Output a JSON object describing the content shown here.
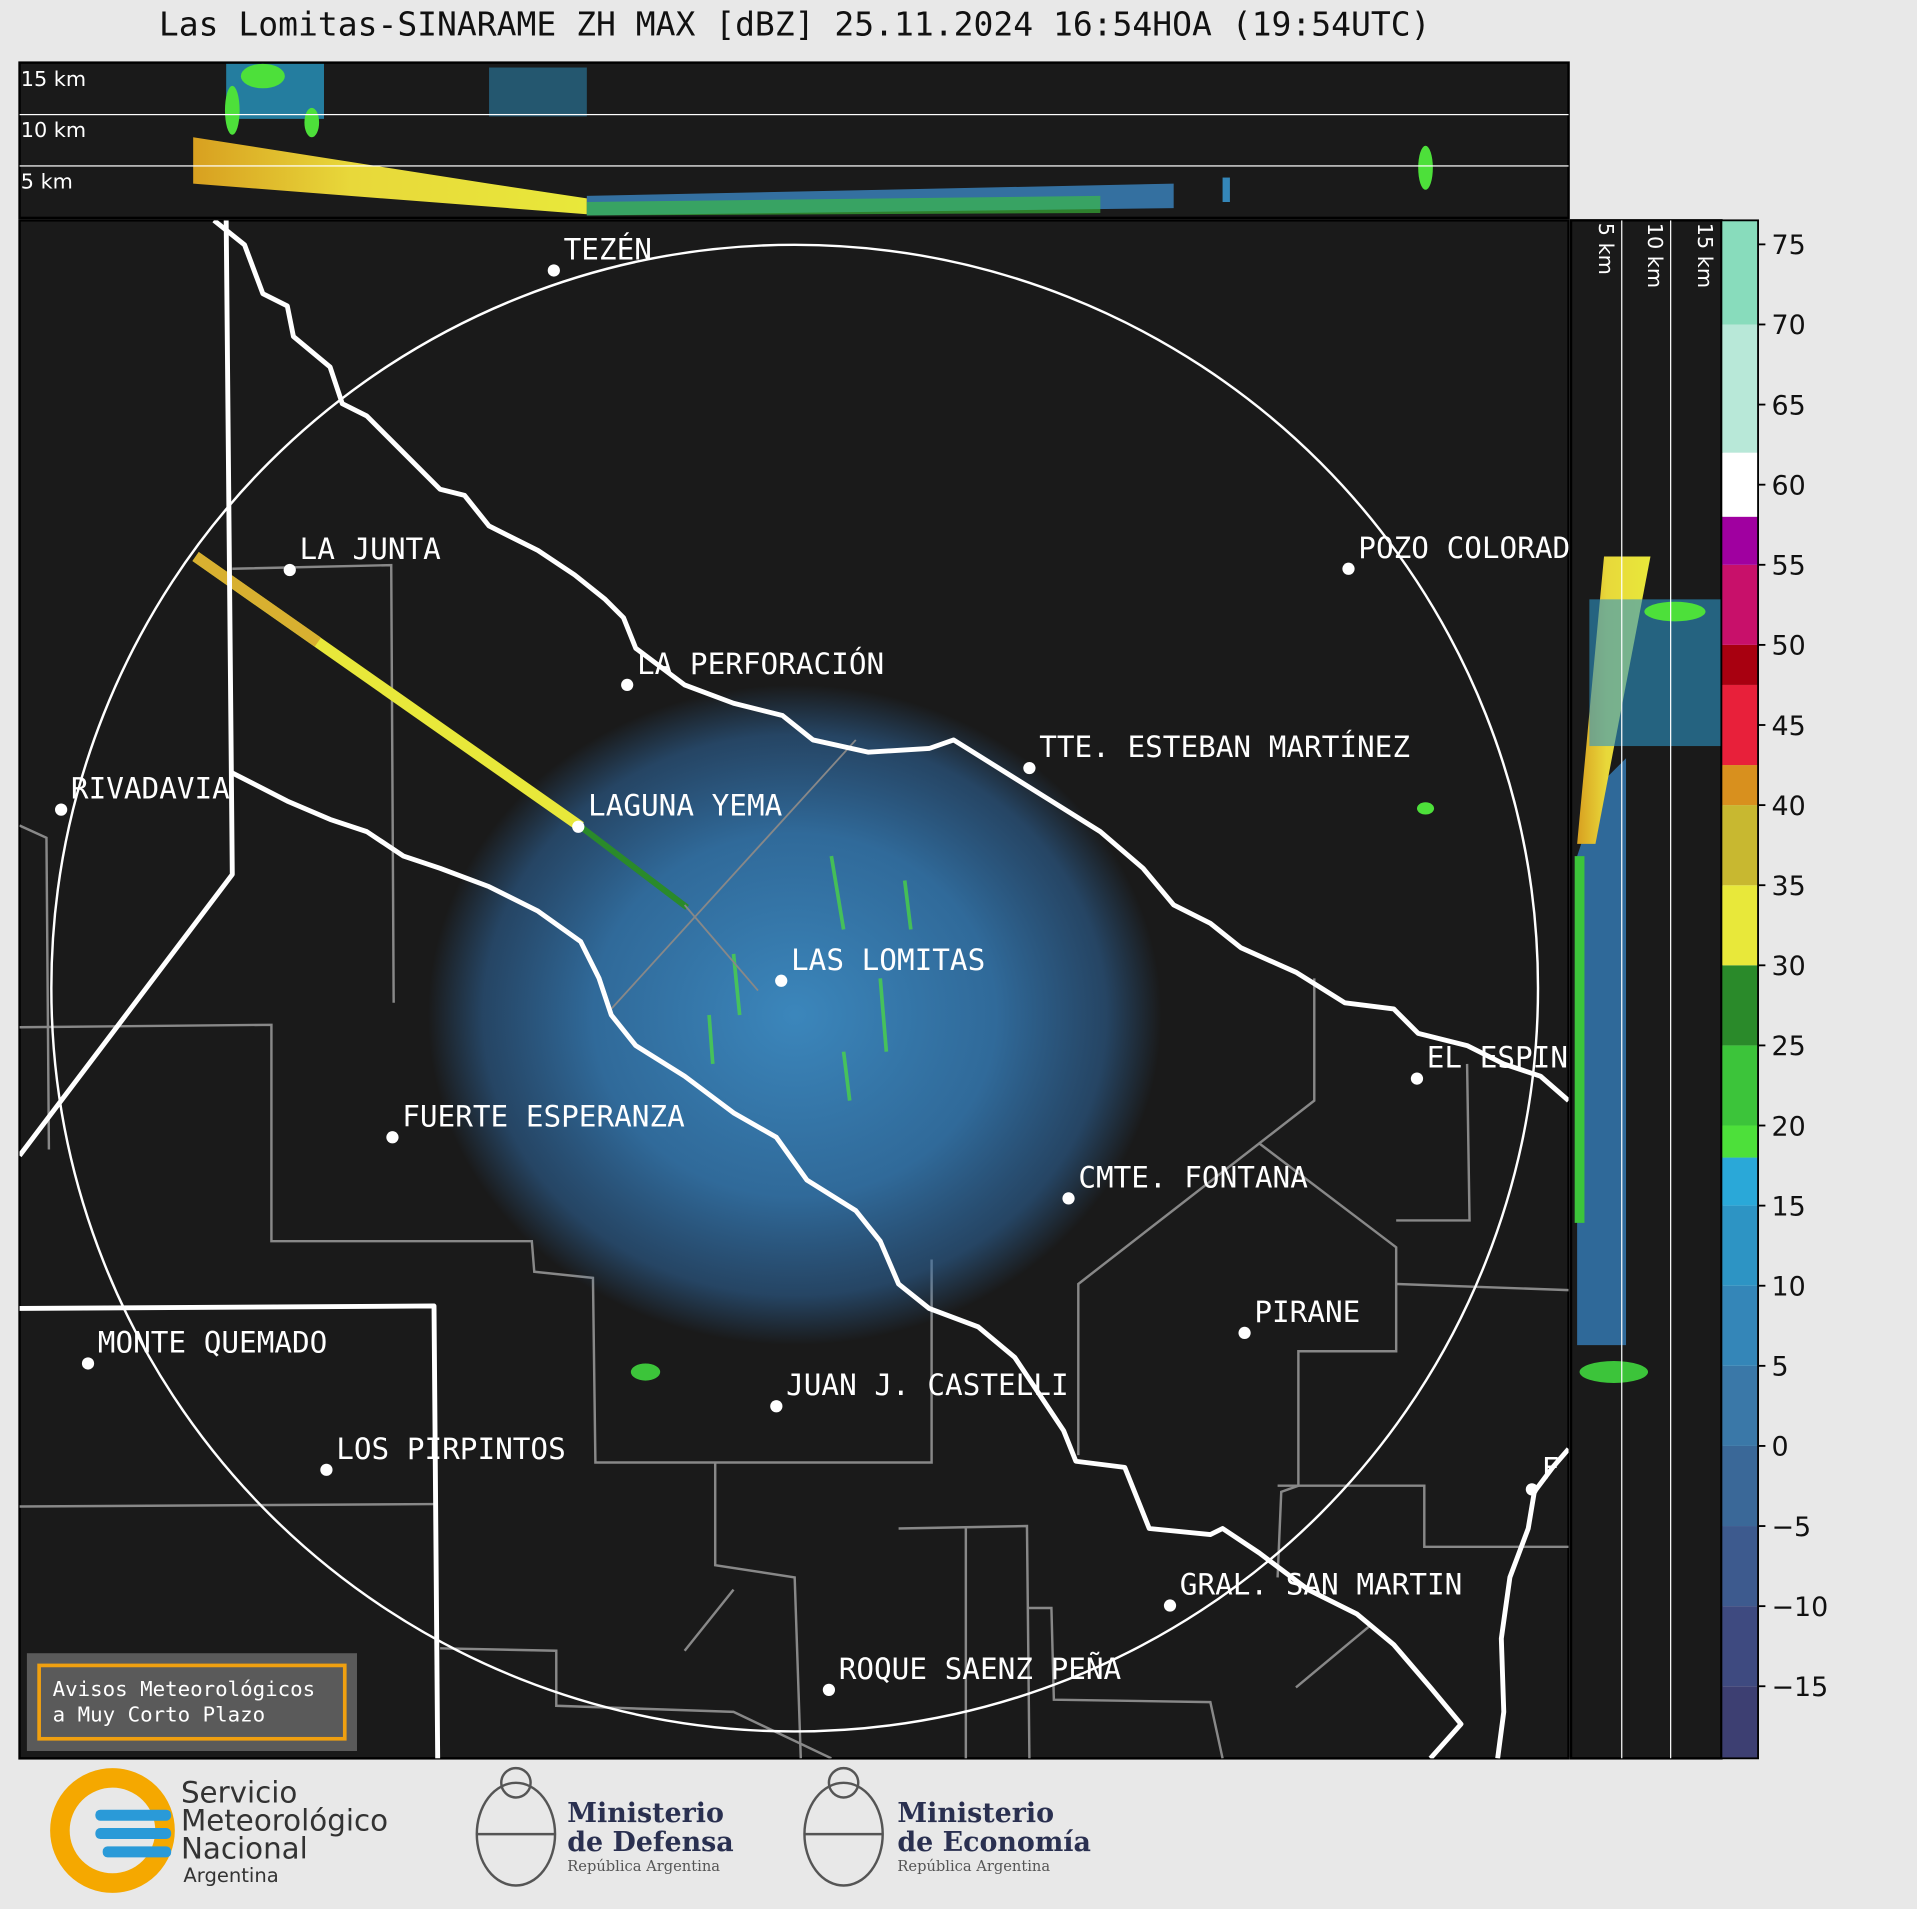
{
  "header": {
    "title": "Las Lomitas-SINARAME ZH MAX [dBZ] 25.11.2024 16:54HOA (19:54UTC)"
  },
  "top_panel": {
    "heights": [
      "15 km",
      "10 km",
      "5 km"
    ]
  },
  "side_panel": {
    "heights": [
      "5 km",
      "10 km",
      "15 km"
    ]
  },
  "places": [
    {
      "label": "TEZÉN"
    },
    {
      "label": "LA JUNTA"
    },
    {
      "label": "LA PERFORACIÓN"
    },
    {
      "label": "POZO COLORAD"
    },
    {
      "label": "TTE. ESTEBAN MARTÍNEZ"
    },
    {
      "label": "RIVADAVIA"
    },
    {
      "label": "LAGUNA YEMA"
    },
    {
      "label": "LAS LOMITAS"
    },
    {
      "label": "EL ESPIN"
    },
    {
      "label": "FUERTE ESPERANZA"
    },
    {
      "label": "CMTE. FONTANA"
    },
    {
      "label": "PIRANE"
    },
    {
      "label": "MONTE QUEMADO"
    },
    {
      "label": "JUAN J. CASTELLI"
    },
    {
      "label": "LOS PIRPINTOS"
    },
    {
      "label": "F"
    },
    {
      "label": "GRAL. SAN MARTIN"
    },
    {
      "label": "ROQUE SAENZ PEÑA"
    }
  ],
  "colorbar": {
    "lim": [
      -19.5,
      76.5
    ],
    "ticks": [
      75,
      70,
      65,
      60,
      55,
      50,
      45,
      40,
      35,
      30,
      25,
      20,
      15,
      10,
      5,
      0,
      {
        "value": -5,
        "label": "−5"
      },
      {
        "value": -10,
        "label": "−10"
      },
      {
        "value": -15,
        "label": "−15"
      }
    ],
    "bands": [
      {
        "from": -19.5,
        "to": -15,
        "color": "#3d3f72"
      },
      {
        "from": -15,
        "to": -10,
        "color": "#3e4a80"
      },
      {
        "from": -10,
        "to": -5,
        "color": "#3d5a8e"
      },
      {
        "from": -5,
        "to": 0,
        "color": "#3a6898"
      },
      {
        "from": 0,
        "to": 5,
        "color": "#3a78a8"
      },
      {
        "from": 5,
        "to": 10,
        "color": "#3486b8"
      },
      {
        "from": 10,
        "to": 15,
        "color": "#2d94c4"
      },
      {
        "from": 15,
        "to": 18,
        "color": "#2aa8d8"
      },
      {
        "from": 18,
        "to": 20,
        "color": "#4de03a"
      },
      {
        "from": 20,
        "to": 25,
        "color": "#3cc43a"
      },
      {
        "from": 25,
        "to": 30,
        "color": "#2a8a2a"
      },
      {
        "from": 30,
        "to": 35,
        "color": "#e8e83a"
      },
      {
        "from": 35,
        "to": 40,
        "color": "#c8b830"
      },
      {
        "from": 40,
        "to": 42.5,
        "color": "#d8901e"
      },
      {
        "from": 42.5,
        "to": 47.5,
        "color": "#e8203a"
      },
      {
        "from": 47.5,
        "to": 50,
        "color": "#a80010"
      },
      {
        "from": 50,
        "to": 55,
        "color": "#c8106a"
      },
      {
        "from": 55,
        "to": 58,
        "color": "#a000a0"
      },
      {
        "from": 58,
        "to": 62,
        "color": "#ffffff"
      },
      {
        "from": 62,
        "to": 70,
        "color": "#b8e8d8"
      },
      {
        "from": 70,
        "to": 76.5,
        "color": "#88dcbc"
      }
    ]
  },
  "warning": {
    "lines": [
      "Avisos Meteorológicos",
      "a Muy Corto Plazo"
    ]
  },
  "footer": {
    "smn": [
      "Servicio",
      "Meteorológico",
      "Nacional",
      "Argentina"
    ],
    "defensa": [
      "Ministerio",
      "de Defensa",
      "República Argentina"
    ],
    "economia": [
      "Ministerio",
      "de Economía",
      "República Argentina"
    ]
  }
}
